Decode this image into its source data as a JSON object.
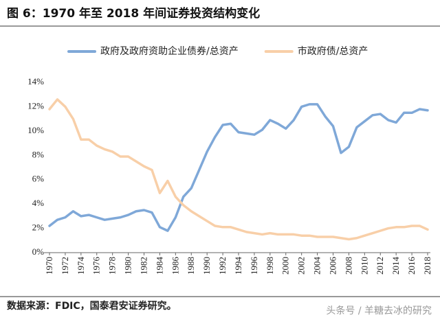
{
  "chart_data": {
    "type": "line",
    "title": "图 6：1970 年至 2018 年间证券投资结构变化",
    "x": [
      1970,
      1971,
      1972,
      1973,
      1974,
      1975,
      1976,
      1977,
      1978,
      1979,
      1980,
      1981,
      1982,
      1983,
      1984,
      1985,
      1986,
      1987,
      1988,
      1989,
      1990,
      1991,
      1992,
      1993,
      1994,
      1995,
      1996,
      1997,
      1998,
      1999,
      2000,
      2001,
      2002,
      2003,
      2004,
      2005,
      2006,
      2007,
      2008,
      2009,
      2010,
      2011,
      2012,
      2013,
      2014,
      2015,
      2016,
      2017,
      2018
    ],
    "series": [
      {
        "name": "政府及政府资助企业债券/总资产",
        "color": "#7fa8d8",
        "values": [
          2.2,
          2.7,
          2.9,
          3.4,
          3.0,
          3.1,
          2.9,
          2.7,
          2.8,
          2.9,
          3.1,
          3.4,
          3.5,
          3.3,
          2.1,
          1.8,
          2.9,
          4.6,
          5.3,
          6.8,
          8.3,
          9.5,
          10.5,
          10.6,
          9.9,
          9.8,
          9.7,
          10.1,
          10.9,
          10.6,
          10.2,
          10.9,
          12.0,
          12.2,
          12.2,
          11.2,
          10.4,
          8.2,
          8.7,
          10.3,
          10.8,
          11.3,
          11.4,
          10.9,
          10.7,
          11.5,
          11.5,
          11.8,
          11.7
        ]
      },
      {
        "name": "市政府债/总资产",
        "color": "#f8cfa8",
        "values": [
          11.8,
          12.6,
          12.0,
          11.0,
          9.3,
          9.3,
          8.8,
          8.5,
          8.3,
          7.9,
          7.9,
          7.5,
          7.1,
          6.8,
          4.9,
          5.9,
          4.6,
          3.9,
          3.4,
          3.0,
          2.6,
          2.2,
          2.1,
          2.1,
          1.9,
          1.7,
          1.6,
          1.5,
          1.6,
          1.5,
          1.5,
          1.5,
          1.4,
          1.4,
          1.3,
          1.3,
          1.3,
          1.2,
          1.1,
          1.2,
          1.4,
          1.6,
          1.8,
          2.0,
          2.1,
          2.1,
          2.2,
          2.2,
          1.9
        ]
      }
    ],
    "xlim": [
      1970,
      2018
    ],
    "xticks": [
      1970,
      1972,
      1974,
      1976,
      1978,
      1980,
      1982,
      1984,
      1986,
      1988,
      1990,
      1992,
      1994,
      1996,
      1998,
      2000,
      2002,
      2004,
      2006,
      2008,
      2010,
      2012,
      2014,
      2016,
      2018
    ],
    "ylim": [
      0,
      14
    ],
    "yticks": [
      {
        "value": 0,
        "label": "0%"
      },
      {
        "value": 2,
        "label": "2%"
      },
      {
        "value": 4,
        "label": "4%"
      },
      {
        "value": 6,
        "label": "6%"
      },
      {
        "value": 8,
        "label": "8%"
      },
      {
        "value": 10,
        "label": "10%"
      },
      {
        "value": 12,
        "label": "12%"
      },
      {
        "value": 14,
        "label": "14%"
      }
    ],
    "grid": false,
    "source": "数据来源：FDIC，国泰君安证券研究。",
    "watermark": "头条号 / 羊糖去冰的研究"
  }
}
